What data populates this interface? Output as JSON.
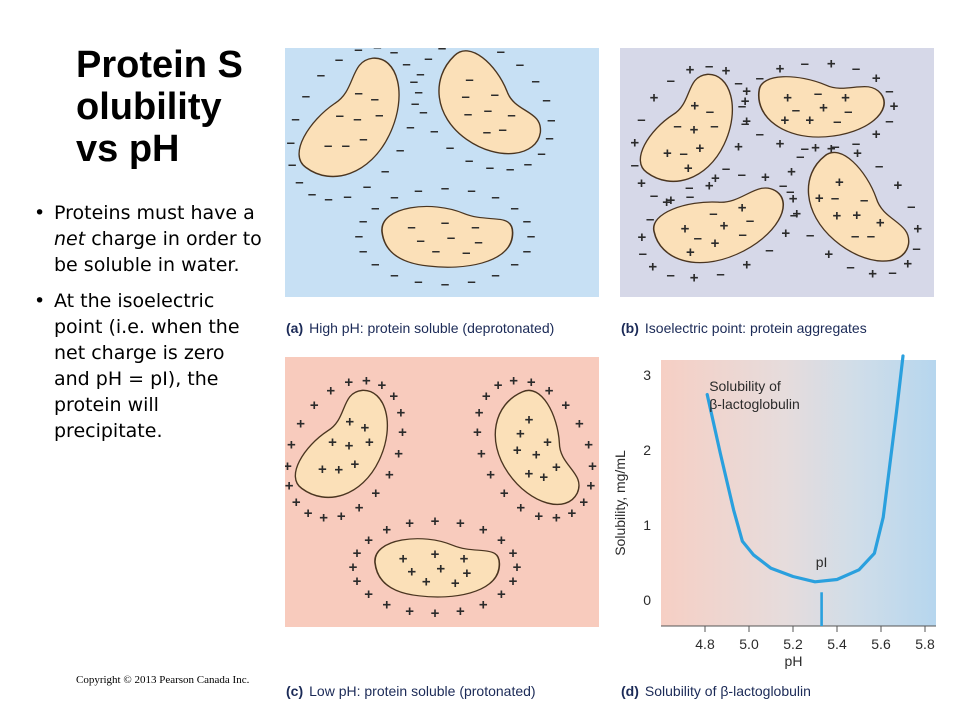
{
  "slide": {
    "title": "Protein Solubility vs pH",
    "bullets": [
      "Proteins must have a net charge in order to be soluble in water.",
      "At the isoelectric point (i.e. when the net charge is zero and pH = pI), the protein will precipitate."
    ],
    "bullet_emphasis_word": "net",
    "copyright": "Copyright © 2013 Pearson Canada Inc."
  },
  "panels": {
    "a": {
      "letter": "(a)",
      "caption": "High pH: protein soluble (deprotonated)",
      "bg": "#c7e0f4",
      "charge": "–"
    },
    "b": {
      "letter": "(b)",
      "caption": "Isoelectric point: protein aggregates",
      "bg": "#d6d8e8",
      "charge": "+ / –"
    },
    "c": {
      "letter": "(c)",
      "caption": "Low pH: protein soluble (protonated)",
      "bg": "#f8cbbd",
      "charge": "+"
    },
    "d": {
      "letter": "(d)",
      "caption": "Solubility of β-lactoglobulin"
    }
  },
  "colors": {
    "protein_fill": "#fbe0b8",
    "protein_outline": "#4a3520",
    "curve": "#2aa0de",
    "caption_text": "#1b2a57"
  },
  "chart_data": {
    "type": "line",
    "title": "",
    "xlabel": "pH",
    "ylabel": "Solubility, mg/mL",
    "xlim": [
      4.6,
      5.85
    ],
    "ylim": [
      -0.35,
      3.2
    ],
    "xticks": [
      "4.8",
      "5.0",
      "5.2",
      "5.4",
      "5.6",
      "5.8"
    ],
    "yticks": [
      "0",
      "1",
      "2",
      "3"
    ],
    "series": [
      {
        "name": "Solubility of β-lactoglobulin",
        "x": [
          4.81,
          4.87,
          4.93,
          4.97,
          5.02,
          5.1,
          5.2,
          5.3,
          5.4,
          5.5,
          5.57,
          5.61,
          5.64,
          5.67,
          5.69,
          5.7
        ],
        "y": [
          2.74,
          1.95,
          1.2,
          0.78,
          0.6,
          0.42,
          0.31,
          0.24,
          0.27,
          0.4,
          0.62,
          1.1,
          1.8,
          2.5,
          3.0,
          3.4
        ]
      }
    ],
    "annotations": [
      {
        "text": "Solubility of",
        "text2": "β-lactoglobulin"
      },
      {
        "text": "pI",
        "x": 5.33
      }
    ],
    "background": "gradient from pink (low pH) to blue (high pH)"
  }
}
